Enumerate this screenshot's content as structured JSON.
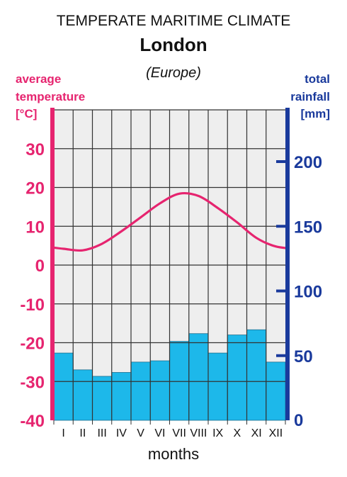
{
  "header": {
    "title": "TEMPERATE MARITIME CLIMATE",
    "city": "London",
    "region": "(Europe)"
  },
  "chart_data": {
    "type": "bar+line",
    "categories": [
      "I",
      "II",
      "III",
      "IV",
      "V",
      "VI",
      "VII",
      "VIII",
      "IX",
      "X",
      "XI",
      "XII"
    ],
    "xlabel": "months",
    "left_axis": {
      "label_line1": "average",
      "label_line2": "temperature",
      "unit": "[°C]",
      "ticks": [
        30,
        20,
        10,
        0,
        -10,
        -20,
        -30,
        -40
      ],
      "range": [
        -40,
        40
      ]
    },
    "right_axis": {
      "label_line1": "total",
      "label_line2": "rainfall",
      "unit": "[mm]",
      "ticks": [
        0,
        50,
        100,
        150,
        200
      ],
      "range": [
        0,
        240
      ]
    },
    "series": [
      {
        "type": "bar",
        "axis": "right",
        "values": [
          52,
          39,
          34,
          37,
          45,
          46,
          61,
          67,
          52,
          66,
          70,
          45
        ]
      },
      {
        "type": "line",
        "axis": "left",
        "values": [
          4.2,
          3.8,
          5.5,
          8.7,
          12.3,
          15.9,
          18.4,
          17.8,
          14.7,
          11.0,
          7.0,
          4.8
        ]
      }
    ],
    "colors": {
      "temperature": "#e6246f",
      "rainfall": "#1a3a9c",
      "bars": "#1db8ea",
      "plot_bg": "#eeeeee"
    },
    "grid": true
  }
}
